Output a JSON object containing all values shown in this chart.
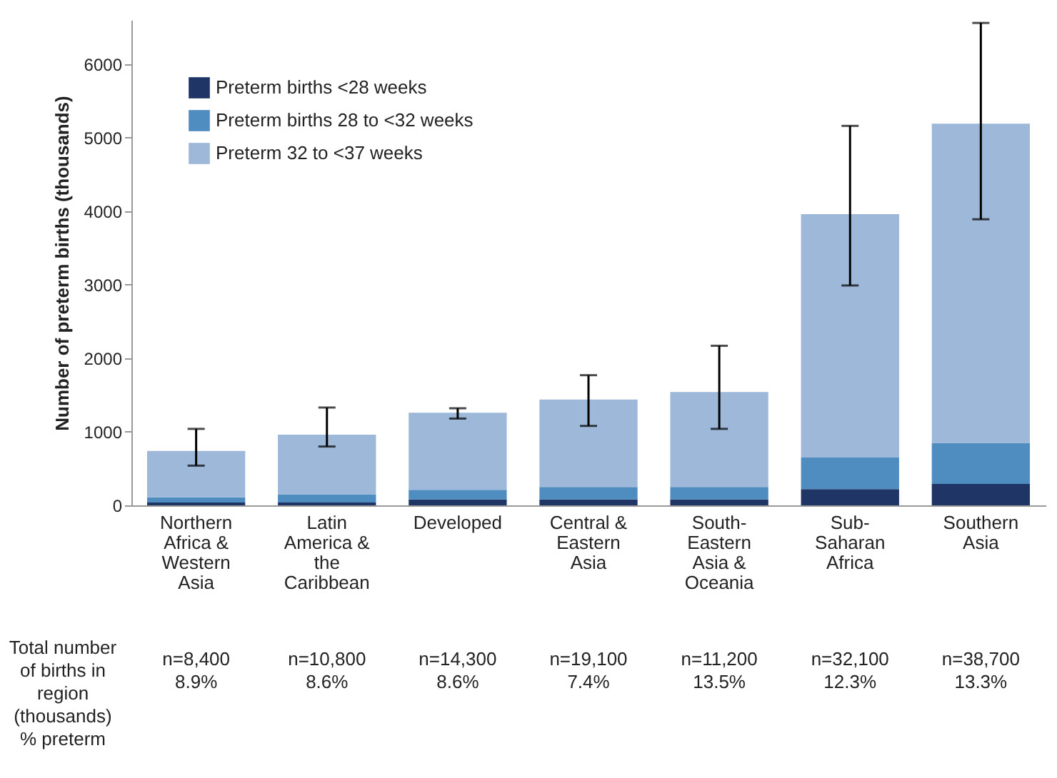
{
  "chart_data": {
    "type": "bar",
    "stacked": true,
    "categories": [
      "Northern Africa & Western Asia",
      "Latin America & the Caribbean",
      "Developed",
      "Central & Eastern Asia",
      "South-Eastern Asia & Oceania",
      "Sub-Saharan Africa",
      "Southern Asia"
    ],
    "series": [
      {
        "name": "Preterm births <28 weeks",
        "color": "#1f3566",
        "values": [
          40,
          40,
          80,
          80,
          80,
          220,
          290
        ]
      },
      {
        "name": "Preterm births 28 to <32 weeks",
        "color": "#4f8dc0",
        "values": [
          70,
          110,
          130,
          170,
          170,
          430,
          560
        ]
      },
      {
        "name": "Preterm 32 to <37 weeks",
        "color": "#9db8d9",
        "values": [
          630,
          810,
          1050,
          1190,
          1290,
          3310,
          4340
        ],
        "errors": [
          [
            540,
            1040
          ],
          [
            800,
            1330
          ],
          [
            1180,
            1320
          ],
          [
            1080,
            1770
          ],
          [
            1040,
            2170
          ],
          [
            2990,
            5160
          ],
          [
            3890,
            6560
          ]
        ]
      }
    ],
    "ylabel": "Number of preterm births (thousands)",
    "ylim": [
      0,
      6600
    ],
    "yticks": [
      0,
      1000,
      2000,
      3000,
      4000,
      5000,
      6000
    ],
    "grid": false,
    "legend": "top left",
    "annotations": [
      "Total number of births in region (thousands) % preterm",
      "n=8,400",
      "8.9%",
      "n=10,800",
      "8.6%",
      "n=14,300",
      "8.6%",
      "n=19,100",
      "7.4%",
      "n=11,200",
      "13.5%",
      "n=32,100",
      "12.3%",
      "n=38,700",
      "13.3%"
    ]
  }
}
